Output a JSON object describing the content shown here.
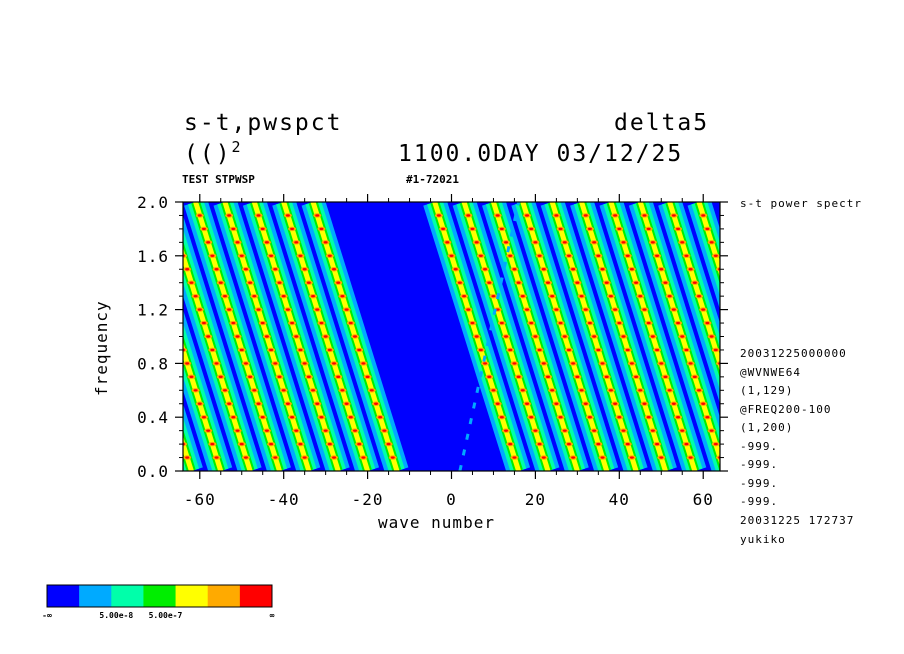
{
  "header": {
    "title_left": "s-t,pwspct",
    "title_right": "delta5",
    "sub_left": "(()",
    "sub_left_sup": "2",
    "sub_right": "1100.0DAY 03/12/25",
    "label_test": "TEST STPWSP",
    "label_id": "#1-72021"
  },
  "side_info": {
    "lines": [
      "s-t power spectr",
      "20031225000000",
      "@WVNWE64",
      "(1,129)",
      "@FREQ200-100",
      "(1,200)",
      "-999.",
      "-999.",
      "-999.",
      "-999.",
      "20031225 172737",
      "yukiko"
    ]
  },
  "chart_data": {
    "type": "heatmap",
    "xlabel": "wave number",
    "ylabel": "frequency",
    "xlim": [
      -64,
      64
    ],
    "ylim": [
      0.0,
      2.0
    ],
    "x_ticks": [
      -60,
      -40,
      -20,
      0,
      20,
      40,
      60
    ],
    "x_tick_labels": [
      "-60",
      "-40",
      "-20",
      "0",
      "20",
      "40",
      "60"
    ],
    "y_ticks": [
      0.0,
      0.4,
      0.8,
      1.2,
      1.6,
      2.0
    ],
    "y_tick_labels": [
      "0.0",
      "0.4",
      "0.8",
      "1.2",
      "1.6",
      "2.0"
    ],
    "colorbar": {
      "colors": [
        "#0000ff",
        "#00aaff",
        "#00ffaa",
        "#00ee00",
        "#ffff00",
        "#ffaa00",
        "#ff0000"
      ],
      "labels": [
        "-∞",
        "5.00e-8",
        "5.00e-7",
        "∞"
      ],
      "label_positions": [
        0,
        2,
        3,
        7
      ]
    },
    "ridge_slope_per_wavenumber": -0.1,
    "ridge_spacing_wavenumber": 7,
    "ridges_left": [
      -69,
      -62,
      -55,
      -48,
      -41,
      -34,
      -27,
      -20,
      -13
    ],
    "ridges_right": [
      16,
      23,
      30,
      37,
      44,
      51,
      58,
      65,
      72,
      79
    ],
    "weak_ridge": {
      "x_start": 2,
      "x_end": 16
    }
  }
}
